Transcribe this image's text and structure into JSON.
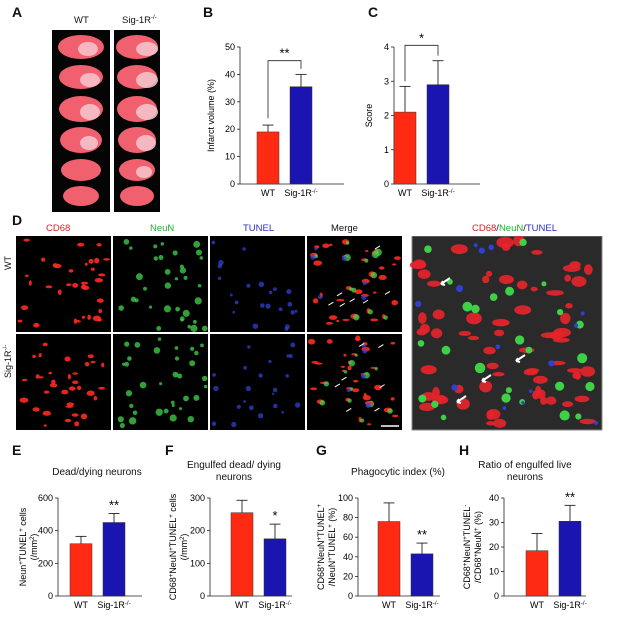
{
  "panel_letters": {
    "a": "A",
    "b": "B",
    "c": "C",
    "d": "D",
    "e": "E",
    "f": "F",
    "g": "G",
    "h": "H"
  },
  "panel_a": {
    "col_wt": "WT",
    "col_ko": "Sig-1R",
    "col_ko_sup": "-/-"
  },
  "panel_d": {
    "headers": [
      "CD68",
      "NeuN",
      "TUNEL",
      "Merge"
    ],
    "header_colors": [
      "#e02020",
      "#22b02a",
      "#2b2bd0",
      "#111111"
    ],
    "rows": [
      "WT",
      "Sig-1R"
    ],
    "row_sup": "-/-",
    "overlay": {
      "p1": "CD68",
      "s1": "/",
      "p2": "NeuN",
      "s2": "/",
      "p3": "TUNEL"
    }
  },
  "colors": {
    "wt": "#ff2a12",
    "ko": "#1a14b0"
  },
  "chart_data": [
    {
      "id": "B",
      "type": "bar",
      "categories": [
        "WT",
        "Sig-1R-/-"
      ],
      "values": [
        19,
        35.5
      ],
      "errors": [
        2.5,
        4.5
      ],
      "ylabel": "Infarct volume (%)",
      "ylim": [
        0,
        50
      ],
      "yticks": [
        0,
        10,
        20,
        30,
        40,
        50
      ],
      "significance": "**",
      "title": ""
    },
    {
      "id": "C",
      "type": "bar",
      "categories": [
        "WT",
        "Sig-1R-/-"
      ],
      "values": [
        2.1,
        2.9
      ],
      "errors": [
        0.75,
        0.7
      ],
      "ylabel": "Score",
      "ylim": [
        0,
        4
      ],
      "yticks": [
        0,
        1,
        2,
        3,
        4
      ],
      "significance": "*",
      "title": ""
    },
    {
      "id": "E",
      "type": "bar",
      "categories": [
        "WT",
        "Sig-1R-/-"
      ],
      "values": [
        320,
        450
      ],
      "errors": [
        45,
        55
      ],
      "ylabel": "Neun+TUNEL+ cells (/mm2)",
      "ylim": [
        0,
        600
      ],
      "yticks": [
        0,
        200,
        400,
        600
      ],
      "significance": "**",
      "title": "Dead/dying neurons"
    },
    {
      "id": "F",
      "type": "bar",
      "categories": [
        "WT",
        "Sig-1R-/-"
      ],
      "values": [
        255,
        175
      ],
      "errors": [
        38,
        45
      ],
      "ylabel": "CD68+NeuN+TUNEL+ cells (/mm2)",
      "ylim": [
        0,
        300
      ],
      "yticks": [
        0,
        100,
        200,
        300
      ],
      "significance": "*",
      "title": "Engulfed dead/ dying neurons"
    },
    {
      "id": "G",
      "type": "bar",
      "categories": [
        "WT",
        "Sig-1R-/-"
      ],
      "values": [
        76,
        43
      ],
      "errors": [
        19,
        11
      ],
      "ylabel": "CD68+NeuN+TUNEL+ /NeuN+TUNEL+ (%)",
      "ylim": [
        0,
        100
      ],
      "yticks": [
        0,
        20,
        40,
        60,
        80,
        100
      ],
      "significance": "**",
      "title": "Phagocytic index (%)"
    },
    {
      "id": "H",
      "type": "bar",
      "categories": [
        "WT",
        "Sig-1R-/-"
      ],
      "values": [
        18.5,
        30.5
      ],
      "errors": [
        7,
        6.5
      ],
      "ylabel": "CD68+NeuN+TUNEL- /CD68+NeuN+ (%)",
      "ylim": [
        0,
        40
      ],
      "yticks": [
        0,
        10,
        20,
        30,
        40
      ],
      "significance": "**",
      "title": "Ratio of engulfed live neurons"
    }
  ]
}
